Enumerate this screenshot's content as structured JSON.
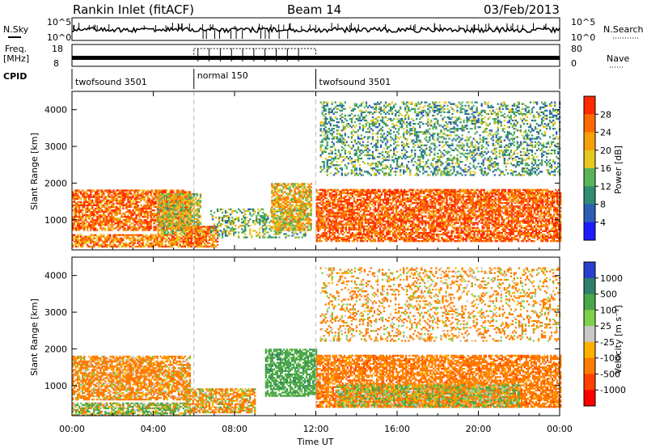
{
  "header": {
    "station": "Rankin Inlet (fitACF)",
    "beam": "Beam 14",
    "date": "03/Feb/2013"
  },
  "noise_panel": {
    "left_label": "N.Sky",
    "right_label": "N.Search",
    "left_ticks": [
      "10^5",
      "10^0"
    ],
    "right_ticks": [
      "10^5",
      "10^0"
    ]
  },
  "freq_panel": {
    "left_label_1": "Freq.",
    "left_label_2": "[MHz]",
    "left_ticks": [
      "18",
      "8"
    ],
    "right_label": "Nave",
    "right_ticks": [
      "80",
      "0"
    ]
  },
  "cpid": {
    "label": "CPID",
    "segments": [
      {
        "name": "twofsound 3501",
        "start_hr": 0,
        "end_hr": 6
      },
      {
        "name": "normal 150",
        "start_hr": 6,
        "end_hr": 12
      },
      {
        "name": "twofsound 3501",
        "start_hr": 12,
        "end_hr": 24
      }
    ]
  },
  "x_axis": {
    "label": "Time UT",
    "ticks": [
      "00:00",
      "04:00",
      "08:00",
      "12:00",
      "16:00",
      "20:00",
      "00:00"
    ],
    "range_hr": [
      0,
      24
    ]
  },
  "power_panel": {
    "ylabel": "Slant Range [km]",
    "yticks": [
      "1000",
      "2000",
      "3000",
      "4000"
    ],
    "cbar_label": "Power [dB]",
    "cbar_ticks": [
      "4",
      "8",
      "12",
      "16",
      "20",
      "24",
      "28"
    ],
    "cbar_colors": [
      "#1c1cff",
      "#2c5fb4",
      "#2f8d72",
      "#59b45a",
      "#e6c81e",
      "#f5a00a",
      "#ff6a00",
      "#ff2a00"
    ]
  },
  "velocity_panel": {
    "ylabel": "Slant Range [km]",
    "yticks": [
      "1000",
      "2000",
      "3000",
      "4000"
    ],
    "cbar_label": "Velocity [m s⁻¹]",
    "cbar_ticks": [
      "1000",
      "500",
      "100",
      "25",
      "-25",
      "-100",
      "-500",
      "-1000"
    ],
    "cbar_colors": [
      "#2a3fd0",
      "#2f7f6a",
      "#4aa64a",
      "#7fd04a",
      "#c8c8c8",
      "#ffb000",
      "#ff7a00",
      "#ff4000",
      "#ff0000"
    ]
  },
  "chart_data": {
    "type": "heatmap",
    "x_range_hr": [
      0,
      24
    ],
    "y_range_km": [
      180,
      4500
    ],
    "mode_change_hr": [
      6,
      12
    ],
    "power_regions": [
      {
        "t0": 0.0,
        "t1": 5.8,
        "r0": 700,
        "r1": 1800,
        "level": 26
      },
      {
        "t0": 0.0,
        "t1": 5.8,
        "r0": 250,
        "r1": 600,
        "level": 24
      },
      {
        "t0": 4.2,
        "t1": 6.3,
        "r0": 600,
        "r1": 1700,
        "level": 18
      },
      {
        "t0": 5.6,
        "t1": 7.2,
        "r0": 250,
        "r1": 800,
        "level": 25
      },
      {
        "t0": 6.8,
        "t1": 11.5,
        "r0": 500,
        "r1": 1300,
        "level": 14
      },
      {
        "t0": 9.8,
        "t1": 11.8,
        "r0": 700,
        "r1": 2000,
        "level": 20
      },
      {
        "t0": 12.0,
        "t1": 24.0,
        "r0": 400,
        "r1": 1800,
        "level": 27
      },
      {
        "t0": 12.2,
        "t1": 24.0,
        "r0": 2200,
        "r1": 4200,
        "level": 12
      }
    ],
    "velocity_regions": [
      {
        "t0": 0.0,
        "t1": 5.8,
        "r0": 600,
        "r1": 1800,
        "level": -200
      },
      {
        "t0": 0.0,
        "t1": 5.8,
        "r0": 180,
        "r1": 500,
        "level": 80
      },
      {
        "t0": 5.6,
        "t1": 9.0,
        "r0": 250,
        "r1": 900,
        "level": -120
      },
      {
        "t0": 9.5,
        "t1": 12.0,
        "r0": 700,
        "r1": 2000,
        "level": 300
      },
      {
        "t0": 12.0,
        "t1": 24.0,
        "r0": 400,
        "r1": 1800,
        "level": -300
      },
      {
        "t0": 13.0,
        "t1": 22.0,
        "r0": 400,
        "r1": 1000,
        "level": 0
      },
      {
        "t0": 12.2,
        "t1": 24.0,
        "r0": 2200,
        "r1": 4200,
        "level": -150
      }
    ]
  }
}
